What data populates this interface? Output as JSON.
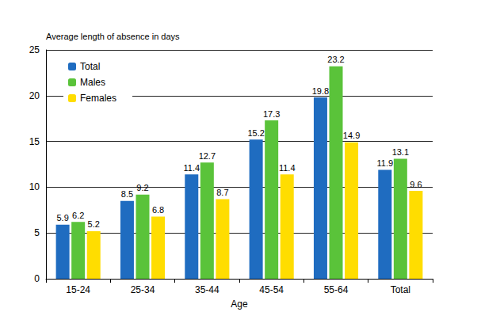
{
  "chart_data": {
    "type": "bar",
    "ylabel": "Average length of absence in days",
    "xlabel": "Age",
    "categories": [
      "15-24",
      "25-34",
      "35-44",
      "45-54",
      "55-64",
      "Total"
    ],
    "series": [
      {
        "name": "Total",
        "color": "#1f6cc0",
        "values": [
          5.9,
          8.5,
          11.4,
          15.2,
          19.8,
          11.9
        ]
      },
      {
        "name": "Males",
        "color": "#5ac33a",
        "values": [
          6.2,
          9.2,
          12.7,
          17.3,
          23.2,
          13.1
        ]
      },
      {
        "name": "Females",
        "color": "#ffdd00",
        "values": [
          5.2,
          6.8,
          8.7,
          11.4,
          14.9,
          9.6
        ]
      }
    ],
    "ylim": [
      0,
      25
    ],
    "yticks": [
      0,
      5,
      10,
      15,
      20,
      25
    ],
    "grid": true,
    "legend": "top-left",
    "data_labels": true
  }
}
